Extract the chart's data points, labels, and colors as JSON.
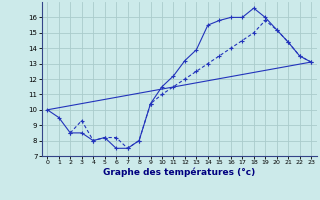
{
  "xlabel": "Graphe des températures (°c)",
  "bg_color": "#cceaea",
  "grid_color": "#aacccc",
  "line_color": "#2233bb",
  "xlim": [
    -0.5,
    23.5
  ],
  "ylim": [
    7,
    17.0
  ],
  "xticks": [
    0,
    1,
    2,
    3,
    4,
    5,
    6,
    7,
    8,
    9,
    10,
    11,
    12,
    13,
    14,
    15,
    16,
    17,
    18,
    19,
    20,
    21,
    22,
    23
  ],
  "yticks": [
    7,
    8,
    9,
    10,
    11,
    12,
    13,
    14,
    15,
    16
  ],
  "curve1_x": [
    0,
    1,
    2,
    3,
    4,
    5,
    6,
    7,
    8,
    9,
    10,
    11,
    12,
    13,
    14,
    15,
    16,
    17,
    18,
    19,
    20,
    21,
    22,
    23
  ],
  "curve1_y": [
    10.0,
    9.5,
    8.5,
    8.5,
    8.0,
    8.2,
    7.5,
    7.5,
    8.0,
    10.4,
    11.5,
    12.2,
    13.2,
    13.9,
    15.5,
    15.8,
    16.0,
    16.0,
    16.6,
    16.0,
    15.2,
    14.4,
    13.5,
    13.1
  ],
  "curve2_x": [
    2,
    3,
    4,
    5,
    6,
    7,
    8,
    9,
    10,
    11,
    12,
    13,
    14,
    15,
    16,
    17,
    18,
    19,
    20,
    21,
    22,
    23
  ],
  "curve2_y": [
    8.5,
    9.3,
    8.0,
    8.2,
    8.2,
    7.5,
    8.0,
    10.4,
    11.0,
    11.5,
    12.0,
    12.5,
    13.0,
    13.5,
    14.0,
    14.5,
    15.0,
    15.8,
    15.2,
    14.4,
    13.5,
    13.1
  ],
  "curve3_x": [
    0,
    23
  ],
  "curve3_y": [
    10.0,
    13.1
  ]
}
